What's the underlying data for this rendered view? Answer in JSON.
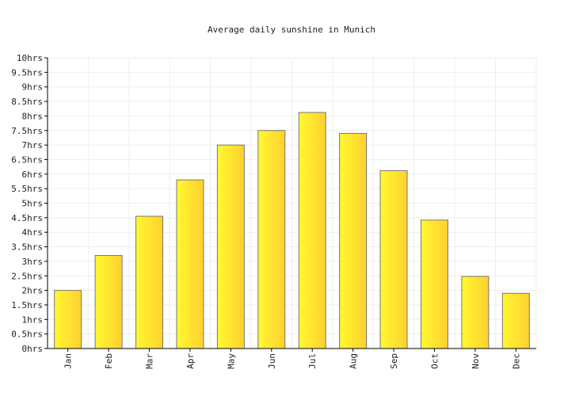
{
  "chart_data": {
    "type": "bar",
    "title": "Average daily sunshine in Munich",
    "xlabel": "",
    "ylabel": "",
    "categories": [
      "Jan",
      "Feb",
      "Mar",
      "Apr",
      "May",
      "Jun",
      "Jul",
      "Aug",
      "Sep",
      "Oct",
      "Nov",
      "Dec"
    ],
    "series": [
      {
        "values": [
          2.0,
          3.2,
          4.55,
          5.8,
          7.0,
          7.5,
          8.12,
          7.4,
          6.12,
          4.42,
          2.48,
          1.9
        ]
      }
    ],
    "ylim": [
      0,
      10
    ],
    "y_tick_step": 0.5,
    "y_tick_labels": [
      "0hrs",
      "0.5hrs",
      "1hrs",
      "1.5hrs",
      "2hrs",
      "2.5hrs",
      "3hrs",
      "3.5hrs",
      "4hrs",
      "4.5hrs",
      "5hrs",
      "5.5hrs",
      "6hrs",
      "6.5hrs",
      "7hrs",
      "7.5hrs",
      "8hrs",
      "8.5hrs",
      "9hrs",
      "9.5hrs",
      "10hrs"
    ],
    "grid": true,
    "legend": "none",
    "colors": {
      "bar_light": "#fff830",
      "bar_dark": "#ffd030",
      "bar_stroke": "#777777",
      "grid": "#eeeeee",
      "axis": "#000000"
    }
  }
}
